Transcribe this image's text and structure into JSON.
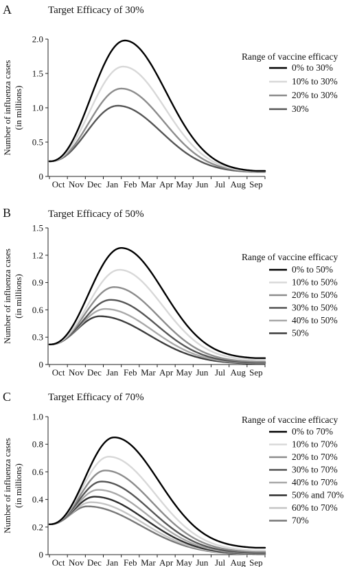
{
  "chart_data": [
    {
      "type": "line",
      "panel": "A",
      "title": "Target Efficacy of 30%",
      "ylabel": [
        "Number of influenza cases",
        "(in millions)"
      ],
      "categories": [
        "Oct",
        "Nov",
        "Dec",
        "Jan",
        "Feb",
        "Mar",
        "Apr",
        "May",
        "Jun",
        "Jul",
        "Aug",
        "Sep"
      ],
      "ylim": [
        0,
        2.0
      ],
      "yticks": [
        "0",
        "0.5",
        "1.0",
        "1.5",
        "2.0"
      ],
      "legend_title": "Range of vaccine efficacy",
      "legend_position": "right",
      "series": [
        {
          "name": "0% to 30%",
          "color": "#000000",
          "start": 0.22,
          "peak": 1.98,
          "peak_month": 4.2,
          "end": 0.08
        },
        {
          "name": "10% to 30%",
          "color": "#d8d8d8",
          "start": 0.22,
          "peak": 1.6,
          "peak_month": 4.1,
          "end": 0.075
        },
        {
          "name": "20% to 30%",
          "color": "#8c8c8c",
          "start": 0.22,
          "peak": 1.28,
          "peak_month": 4.0,
          "end": 0.07
        },
        {
          "name": "30%",
          "color": "#555555",
          "start": 0.22,
          "peak": 1.03,
          "peak_month": 3.8,
          "end": 0.065
        }
      ]
    },
    {
      "type": "line",
      "panel": "B",
      "title": "Target Efficacy of 50%",
      "ylabel": [
        "Number of influenza cases",
        "(in millions)"
      ],
      "categories": [
        "Oct",
        "Nov",
        "Dec",
        "Jan",
        "Feb",
        "Mar",
        "Apr",
        "May",
        "Jun",
        "Jul",
        "Aug",
        "Sep"
      ],
      "ylim": [
        0,
        1.5
      ],
      "yticks": [
        "0",
        "0.3",
        "0.6",
        "0.9",
        "1.2",
        "1.5"
      ],
      "legend_title": "Range of vaccine efficacy",
      "legend_position": "right",
      "series": [
        {
          "name": "0% to 50%",
          "color": "#000000",
          "start": 0.22,
          "peak": 1.28,
          "peak_month": 4.0,
          "end": 0.07
        },
        {
          "name": "10% to 50%",
          "color": "#d8d8d8",
          "start": 0.22,
          "peak": 1.04,
          "peak_month": 3.9,
          "end": 0.05
        },
        {
          "name": "20% to 50%",
          "color": "#8c8c8c",
          "start": 0.22,
          "peak": 0.85,
          "peak_month": 3.6,
          "end": 0.03
        },
        {
          "name": "30% to 50%",
          "color": "#555555",
          "start": 0.22,
          "peak": 0.71,
          "peak_month": 3.4,
          "end": 0.02
        },
        {
          "name": "40% to 50%",
          "color": "#a8a8a8",
          "start": 0.22,
          "peak": 0.61,
          "peak_month": 3.1,
          "end": 0.015
        },
        {
          "name": "50%",
          "color": "#3c3c3c",
          "start": 0.22,
          "peak": 0.53,
          "peak_month": 2.8,
          "end": 0.01
        }
      ]
    },
    {
      "type": "line",
      "panel": "C",
      "title": "Target Efficacy of 70%",
      "ylabel": [
        "Number of influenza cases",
        "(in millions)"
      ],
      "categories": [
        "Oct",
        "Nov",
        "Dec",
        "Jan",
        "Feb",
        "Mar",
        "Apr",
        "May",
        "Jun",
        "Jul",
        "Aug",
        "Sep"
      ],
      "ylim": [
        0,
        1.0
      ],
      "yticks": [
        "0",
        "0.2",
        "0.4",
        "0.6",
        "0.8",
        "1.0"
      ],
      "legend_title": "Range of vaccine efficacy",
      "legend_position": "right",
      "series": [
        {
          "name": "0% to 70%",
          "color": "#000000",
          "start": 0.22,
          "peak": 0.85,
          "peak_month": 3.6,
          "end": 0.05
        },
        {
          "name": "10% to 70%",
          "color": "#d8d8d8",
          "start": 0.22,
          "peak": 0.71,
          "peak_month": 3.3,
          "end": 0.03
        },
        {
          "name": "20% to 70%",
          "color": "#8c8c8c",
          "start": 0.22,
          "peak": 0.61,
          "peak_month": 3.1,
          "end": 0.02
        },
        {
          "name": "30% to 70%",
          "color": "#555555",
          "start": 0.22,
          "peak": 0.53,
          "peak_month": 2.9,
          "end": 0.012
        },
        {
          "name": "40% to 70%",
          "color": "#a8a8a8",
          "start": 0.22,
          "peak": 0.47,
          "peak_month": 2.7,
          "end": 0.008
        },
        {
          "name": "50% and 70%",
          "color": "#2e2e2e",
          "start": 0.22,
          "peak": 0.42,
          "peak_month": 2.5,
          "end": 0.005
        },
        {
          "name": "60% to 70%",
          "color": "#c4c4c4",
          "start": 0.22,
          "peak": 0.38,
          "peak_month": 2.3,
          "end": 0.003
        },
        {
          "name": "70%",
          "color": "#777777",
          "start": 0.22,
          "peak": 0.35,
          "peak_month": 2.1,
          "end": 0.002
        }
      ]
    }
  ]
}
